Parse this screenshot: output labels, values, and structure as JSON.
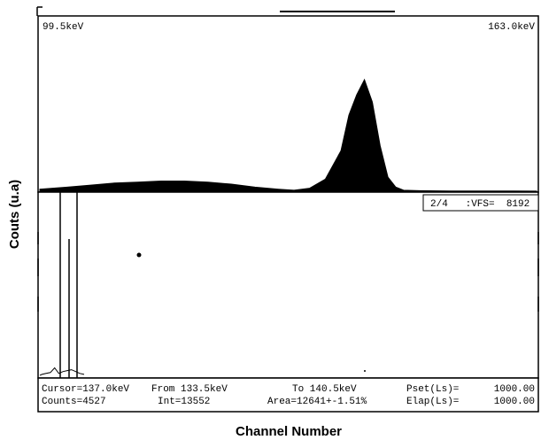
{
  "chart_data": {
    "type": "area",
    "xlabel": "Channel Number",
    "ylabel": "Couts (u.a)",
    "energy_range_keV": [
      "99.5keV",
      "163.0keV"
    ],
    "x_keV": [
      99.5,
      103,
      106,
      109,
      112,
      115,
      118,
      121,
      124,
      127,
      130,
      132,
      134,
      136,
      138,
      139,
      140,
      141,
      142,
      143,
      144,
      145,
      146,
      148,
      152,
      156,
      160,
      163
    ],
    "counts": [
      2,
      4,
      6,
      8,
      9,
      10,
      10,
      9,
      7,
      4,
      2,
      1,
      3,
      12,
      40,
      75,
      95,
      110,
      88,
      45,
      14,
      4,
      1,
      0.5,
      0.3,
      0.2,
      0.2,
      0.1
    ],
    "display_vfs": 8192,
    "scale_label": "2/4   :VFS=  8192",
    "status": {
      "cursor": "Cursor=137.0keV",
      "counts": "Counts=4527",
      "from": "From 133.5keV",
      "int": "Int=13552",
      "to": "To 140.5keV",
      "area": "Area=12641+-1.51%",
      "pset_label": "Pset(Ls)=",
      "pset_value": "1000.00",
      "elap_label": "Elap(Ls)=",
      "elap_value": "1000.00"
    },
    "expanded_view": {
      "x_keV": [
        99.5,
        100,
        101,
        102,
        103,
        104,
        105,
        106,
        107,
        108,
        109,
        110
      ],
      "counts": [
        1,
        1.5,
        2,
        2.5,
        5,
        2,
        3,
        3.5,
        4,
        3,
        2,
        1.5
      ],
      "ylim": [
        0,
        60
      ]
    }
  }
}
